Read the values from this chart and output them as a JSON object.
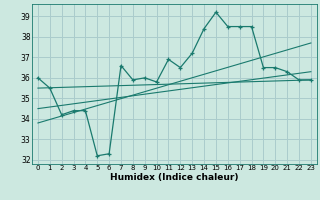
{
  "xlabel": "Humidex (Indice chaleur)",
  "bg_color": "#cce8e0",
  "grid_color": "#aacccc",
  "line_color": "#1a7a6e",
  "xlim": [
    -0.5,
    23.5
  ],
  "ylim": [
    31.8,
    39.6
  ],
  "yticks": [
    32,
    33,
    34,
    35,
    36,
    37,
    38,
    39
  ],
  "xticks": [
    0,
    1,
    2,
    3,
    4,
    5,
    6,
    7,
    8,
    9,
    10,
    11,
    12,
    13,
    14,
    15,
    16,
    17,
    18,
    19,
    20,
    21,
    22,
    23
  ],
  "series1_x": [
    0,
    1,
    2,
    3,
    4,
    5,
    6,
    7,
    8,
    9,
    10,
    11,
    12,
    13,
    14,
    15,
    16,
    17,
    18,
    19,
    20,
    21,
    22,
    23
  ],
  "series1_y": [
    36.0,
    35.5,
    34.2,
    34.4,
    34.4,
    32.2,
    32.3,
    36.6,
    35.9,
    36.0,
    35.8,
    36.9,
    36.5,
    37.2,
    38.4,
    39.2,
    38.5,
    38.5,
    38.5,
    36.5,
    36.5,
    36.3,
    35.9,
    35.9
  ],
  "series2_x": [
    0,
    23
  ],
  "series2_y": [
    35.5,
    35.9
  ],
  "series3_x": [
    0,
    23
  ],
  "series3_y": [
    33.8,
    37.7
  ],
  "series4_x": [
    0,
    23
  ],
  "series4_y": [
    34.5,
    36.3
  ]
}
